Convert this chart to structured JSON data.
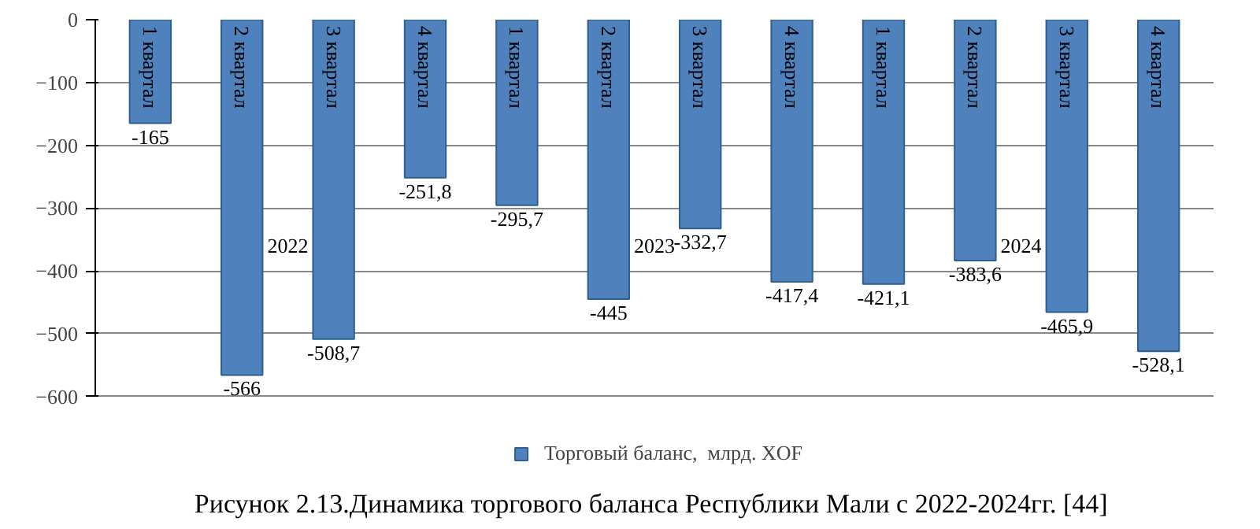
{
  "chart_data": {
    "type": "bar",
    "title": "Рисунок  2.13.Динамика торгового баланса Республики Мали с 2022-2024гг. [44]",
    "categories": [
      "1 квартал",
      "2 квартал",
      "3 квартал",
      "4 квартал",
      "1 квартал",
      "2 квартал",
      "3 квартал",
      "4 квартал",
      "1 квартал",
      "2 квартал",
      "3 квартал",
      "4 квартал"
    ],
    "series": [
      {
        "name": "Торговый баланс,  млрд. XOF",
        "color": "#4f81bd",
        "values": [
          -165,
          -566,
          -508.7,
          -251.8,
          -295.7,
          -445,
          -332.7,
          -417.4,
          -421.1,
          -383.6,
          -465.9,
          -528.1
        ],
        "value_labels": [
          "-165",
          "-566",
          "-508,7",
          "-251,8",
          "-295,7",
          "-445",
          "-332,7",
          "-417,4",
          "-421,1",
          "-383,6",
          "-465,9",
          "-528,1"
        ]
      }
    ],
    "annotations": [
      "2022",
      "2023",
      "2024"
    ],
    "ylim": [
      -600,
      0
    ],
    "yticks": [
      -600,
      -500,
      -400,
      -300,
      -200,
      -100,
      0
    ],
    "grid": "y",
    "legend": "bottom"
  }
}
